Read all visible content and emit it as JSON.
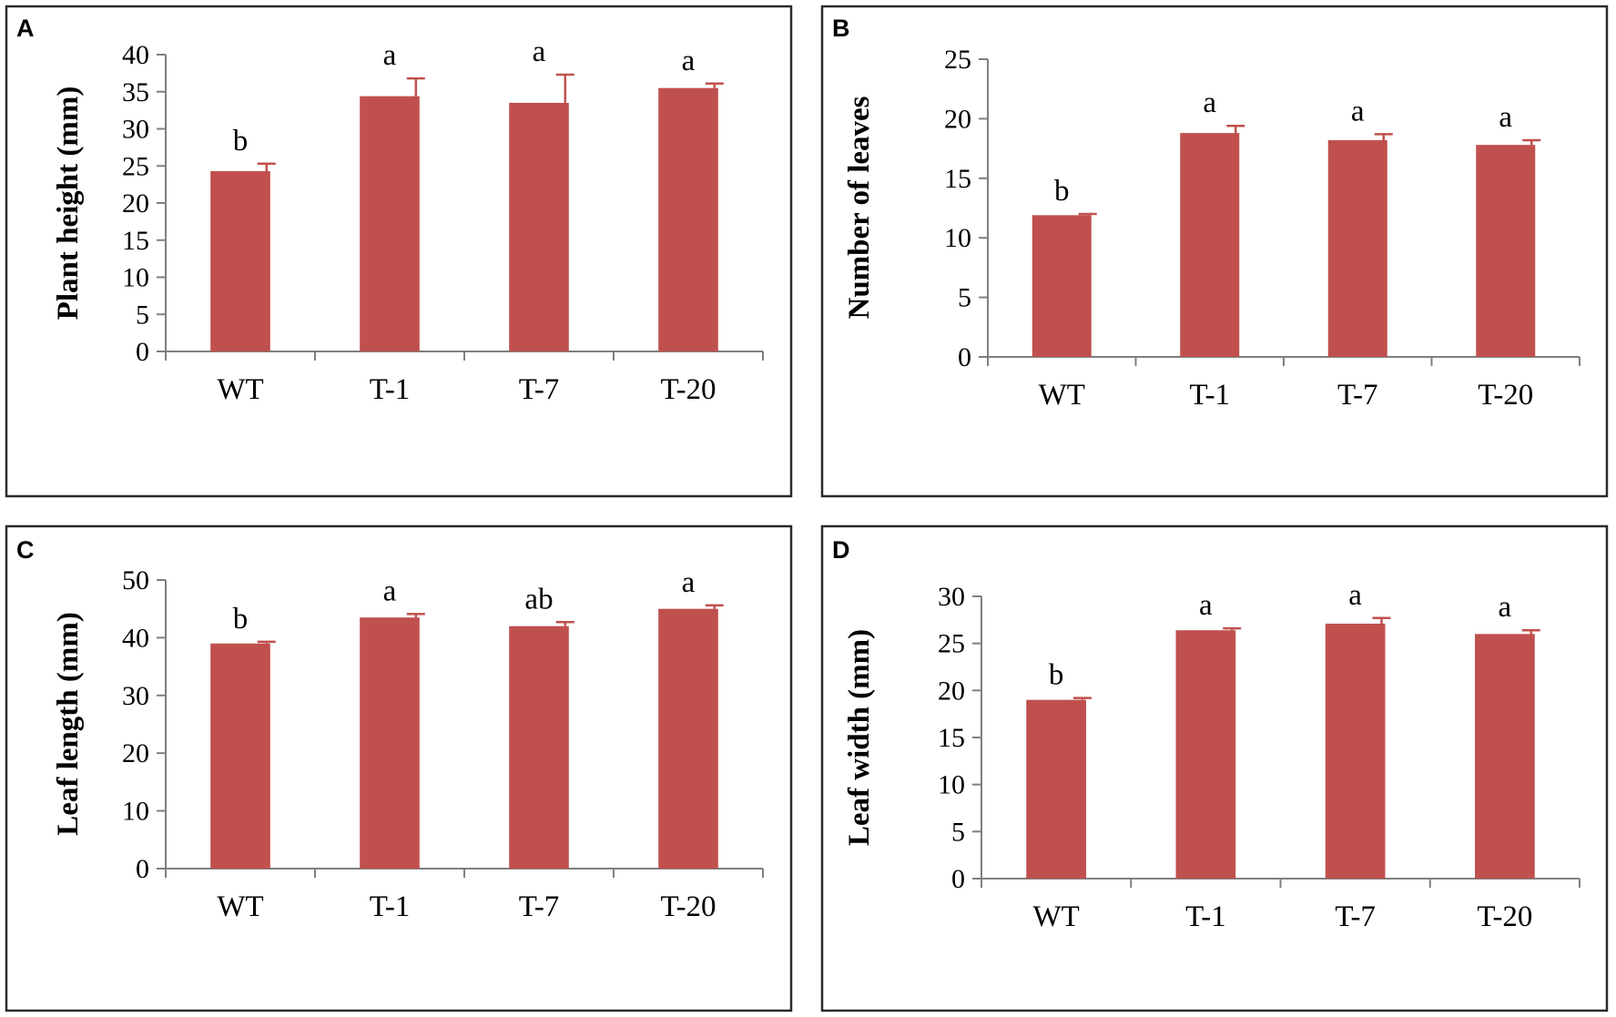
{
  "colors": {
    "bar": "#c0504d",
    "frame": "#2a2a2a",
    "axis": "#7f7f7f"
  },
  "chart_data": [
    {
      "type": "bar",
      "panel": "A",
      "ylabel": "Plant height (mm)",
      "categories": [
        "WT",
        "T-1",
        "T-7",
        "T-20"
      ],
      "values": [
        24.3,
        34.4,
        33.5,
        35.5
      ],
      "errors": [
        1.0,
        2.4,
        3.8,
        0.6
      ],
      "significance": [
        "b",
        "a",
        "a",
        "a"
      ],
      "ylim": [
        0,
        40
      ],
      "yticks": [
        0,
        5,
        10,
        15,
        20,
        25,
        30,
        35,
        40
      ],
      "grid": false
    },
    {
      "type": "bar",
      "panel": "B",
      "ylabel": "Number of leaves",
      "categories": [
        "WT",
        "T-1",
        "T-7",
        "T-20"
      ],
      "values": [
        11.9,
        18.8,
        18.2,
        17.8
      ],
      "errors": [
        0.1,
        0.6,
        0.5,
        0.4
      ],
      "significance": [
        "b",
        "a",
        "a",
        "a"
      ],
      "ylim": [
        0,
        25
      ],
      "yticks": [
        0,
        5,
        10,
        15,
        20,
        25
      ],
      "grid": false
    },
    {
      "type": "bar",
      "panel": "C",
      "ylabel": "Leaf length (mm)",
      "categories": [
        "WT",
        "T-1",
        "T-7",
        "T-20"
      ],
      "values": [
        39.0,
        43.5,
        42.0,
        45.0
      ],
      "errors": [
        0.3,
        0.6,
        0.7,
        0.6
      ],
      "significance": [
        "b",
        "a",
        "ab",
        "a"
      ],
      "ylim": [
        0,
        50
      ],
      "yticks": [
        0,
        10,
        20,
        30,
        40,
        50
      ],
      "grid": false
    },
    {
      "type": "bar",
      "panel": "D",
      "ylabel": "Leaf width (mm)",
      "categories": [
        "WT",
        "T-1",
        "T-7",
        "T-20"
      ],
      "values": [
        19.0,
        26.4,
        27.1,
        26.0
      ],
      "errors": [
        0.2,
        0.2,
        0.6,
        0.4
      ],
      "significance": [
        "b",
        "a",
        "a",
        "a"
      ],
      "ylim": [
        0,
        30
      ],
      "yticks": [
        0,
        5,
        10,
        15,
        20,
        25,
        30
      ],
      "grid": false
    }
  ]
}
